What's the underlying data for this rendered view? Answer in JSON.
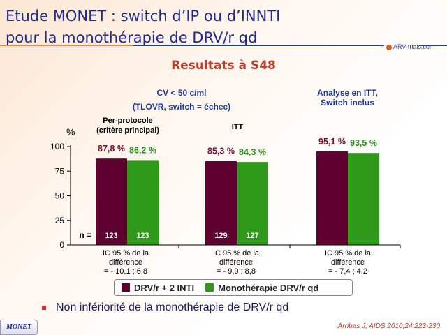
{
  "title": [
    "Etude MONET : switch d’IP ou d’INNTI",
    "pour la monothérapie de DRV/r qd"
  ],
  "logo": "ARV-trials.com",
  "subtitle": "Resultats à S48",
  "header_cv": [
    "CV < 50 c/ml",
    "(TLOVR, switch = échec)"
  ],
  "header_itt": [
    "Analyse en ITT,",
    "Switch inclus"
  ],
  "group_headers": [
    [
      "Per-protocole",
      "(critère principal)"
    ],
    [
      "ITT"
    ]
  ],
  "chart_data": {
    "type": "bar",
    "ylabel": "%",
    "ylim": [
      0,
      100
    ],
    "yticks": [
      "0",
      "25",
      "50",
      "75",
      "100"
    ],
    "categories": [
      "IC 95 % de la|différence|= - 10,1 ; 6,8",
      "IC 95 % de la|différence|= - 9,9 ; 8,8",
      "IC 95 % de la|différence|= - 7,4 ; 4,2"
    ],
    "category_lines": [
      [
        "IC 95 % de la",
        "différence",
        "= - 10,1 ; 6,8"
      ],
      [
        "IC 95 % de la",
        "différence",
        "= - 9,9 ; 8,8"
      ],
      [
        "IC 95 % de la",
        "différence",
        "= - 7,4 ; 4,2"
      ]
    ],
    "series": [
      {
        "name": "DRV/r + 2 INTI",
        "color": "#5e0030",
        "label_color": "#7a1030",
        "values": [
          87.8,
          85.3,
          95.1
        ],
        "labels": [
          "87,8 %",
          "85,3 %",
          "95,1 %"
        ],
        "n": [
          "123",
          "129",
          ""
        ]
      },
      {
        "name": "Monothérapie DRV/r qd",
        "color": "#2f9a1a",
        "label_color": "#2a8a18",
        "values": [
          86.2,
          84.3,
          93.5
        ],
        "labels": [
          "86,2 %",
          "84,3 %",
          "93,5 %"
        ],
        "n": [
          "123",
          "127",
          ""
        ]
      }
    ],
    "n_label": "n ="
  },
  "bullet": "Non infériorité de la monothérapie de DRV/r qd",
  "footer_tag": "MONET",
  "citation": "Arribas J, AIDS 2010;24:223-230"
}
